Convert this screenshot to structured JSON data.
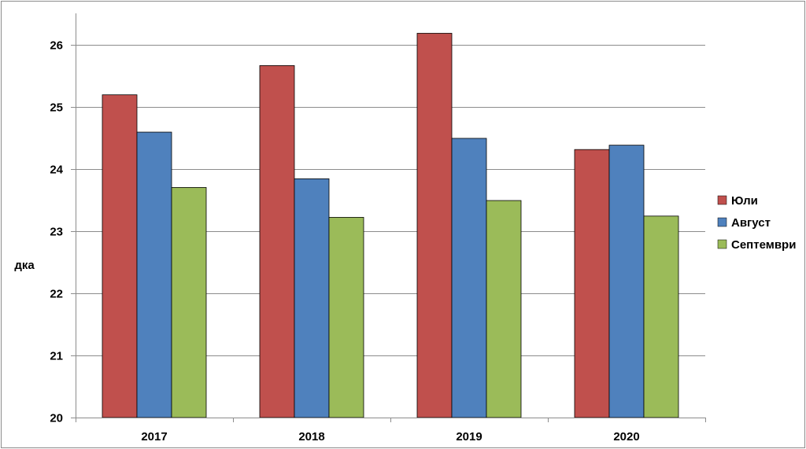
{
  "chart_data": {
    "type": "bar",
    "categories": [
      "2017",
      "2018",
      "2019",
      "2020"
    ],
    "series": [
      {
        "name": "Юли",
        "color": "#C0504D",
        "values": [
          25.19,
          25.66,
          26.18,
          24.31
        ]
      },
      {
        "name": "Август",
        "color": "#4F81BD",
        "values": [
          24.59,
          23.84,
          24.49,
          24.38
        ]
      },
      {
        "name": "Септември",
        "color": "#9BBB59",
        "values": [
          23.7,
          23.22,
          23.49,
          23.24
        ]
      }
    ],
    "ylabel": "дка",
    "ylim": [
      20,
      26.5
    ],
    "yticks": [
      20,
      21,
      22,
      23,
      24,
      25,
      26
    ],
    "grid": true,
    "legend": "right"
  }
}
